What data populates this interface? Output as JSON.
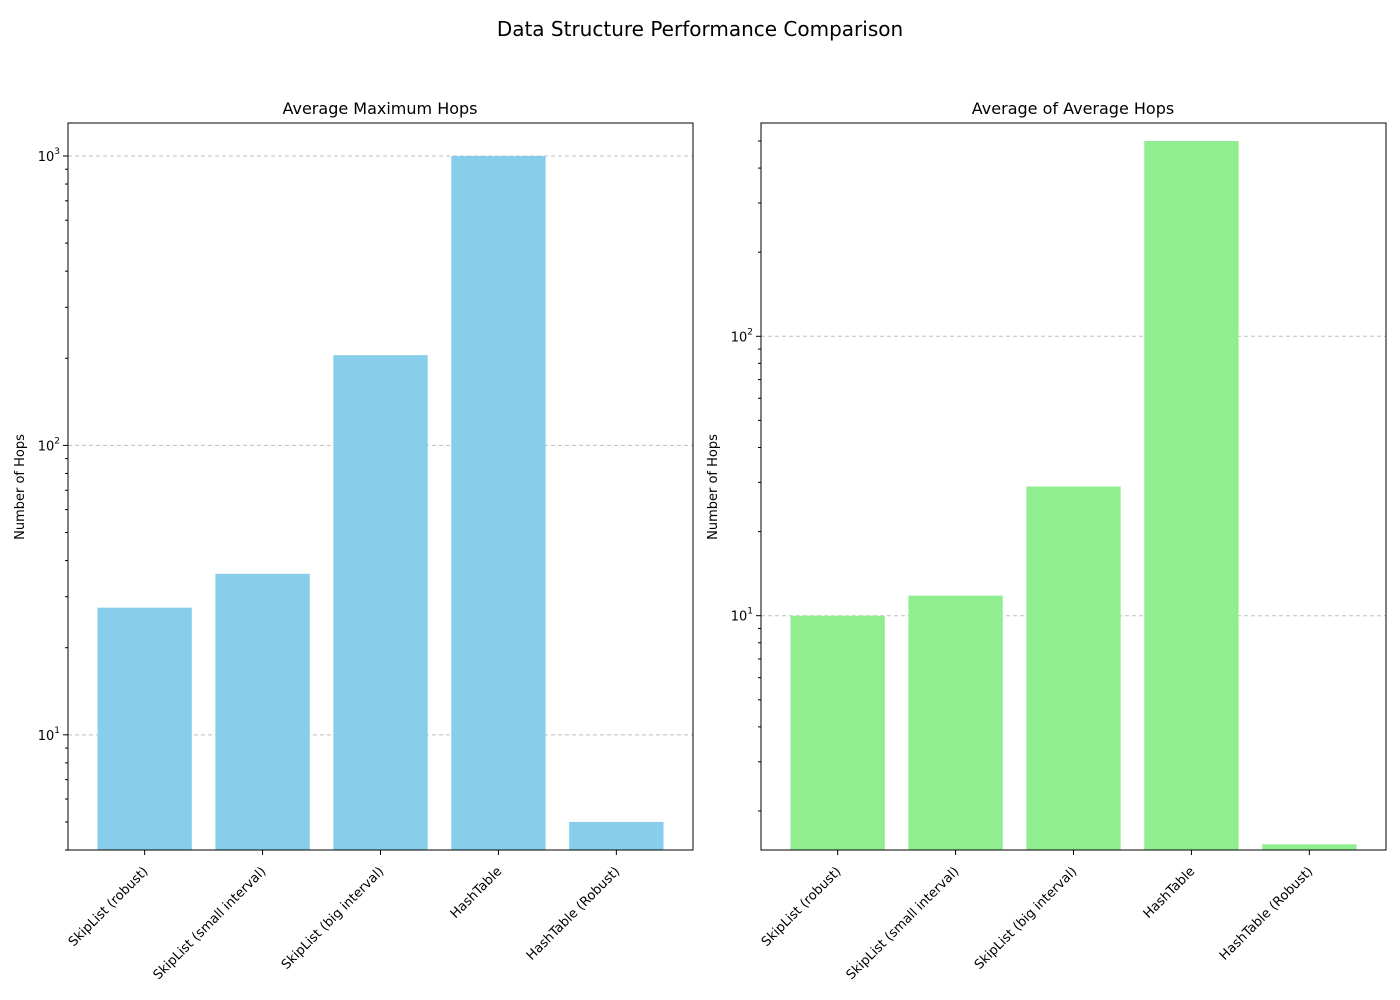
{
  "figure_title": "Data Structure Performance Comparison",
  "chart_data": [
    {
      "type": "bar",
      "title": "Average Maximum Hops",
      "xlabel": "",
      "ylabel": "Number of Hops",
      "yscale": "log",
      "ylim": [
        4,
        1300
      ],
      "grid": "y-major-dashed",
      "color": "#87ceeb",
      "categories": [
        "SkipList (robust)",
        "SkipList (small interval)",
        "SkipList (big interval)",
        "HashTable",
        "HashTable (Robust)"
      ],
      "values": [
        27.5,
        36,
        205,
        1000,
        5
      ],
      "yticks": [
        10,
        100,
        1000
      ]
    },
    {
      "type": "bar",
      "title": "Average of Average Hops",
      "xlabel": "",
      "ylabel": "Number of Hops",
      "yscale": "log",
      "ylim": [
        1.45,
        580
      ],
      "grid": "y-major-dashed",
      "color": "#90ee90",
      "categories": [
        "SkipList (robust)",
        "SkipList (small interval)",
        "SkipList (big interval)",
        "HashTable",
        "HashTable (Robust)"
      ],
      "values": [
        10,
        11.8,
        29,
        500,
        1.52
      ],
      "yticks": [
        10,
        100
      ]
    }
  ]
}
